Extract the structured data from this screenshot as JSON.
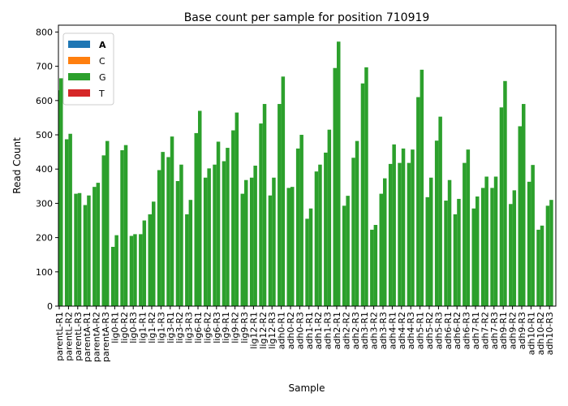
{
  "chart_data": {
    "type": "bar",
    "stacked": true,
    "title": "Base count per sample for position 710919",
    "xlabel": "Sample",
    "ylabel": "Read Count",
    "categories": [
      "parentL-R1",
      "parentL-R2",
      "parentL-R3",
      "parentA-R1",
      "parentA-R2",
      "parentA-R3",
      "lig0-R1",
      "lig0-R2",
      "lig0-R3",
      "lig1-R1",
      "lig1-R2",
      "lig1-R3",
      "lig3-R1",
      "lig3-R2",
      "lig3-R3",
      "lig6-R1",
      "lig6-R2",
      "lig6-R3",
      "lig9-R1",
      "lig9-R2",
      "lig9-R3",
      "lig12-R1",
      "lig12-R2",
      "lig12-R3",
      "adh0-R1",
      "adh0-R2",
      "adh0-R3",
      "adh1-R1",
      "adh1-R2",
      "adh1-R3",
      "adh2-R1",
      "adh2-R2",
      "adh2-R3",
      "adh3-R1",
      "adh3-R2",
      "adh3-R3",
      "adh4-R1",
      "adh4-R2",
      "adh4-R3",
      "adh5-R1",
      "adh5-R2",
      "adh5-R3",
      "adh6-R1",
      "adh6-R2",
      "adh6-R3",
      "adh7-R1",
      "adh7-R2",
      "adh7-R3",
      "adh9-R1",
      "adh9-R2",
      "adh9-R3",
      "adh10-R1",
      "adh10-R2",
      "adh10-R3"
    ],
    "series": [
      {
        "name": "A",
        "color": "#1f77b4",
        "values": [
          0,
          0,
          0,
          0,
          0,
          0,
          0,
          0,
          0,
          0,
          0,
          0,
          0,
          0,
          0,
          0,
          0,
          0,
          0,
          0,
          0,
          0,
          0,
          0,
          0,
          0,
          0,
          0,
          0,
          0,
          0,
          0,
          0,
          0,
          0,
          0,
          0,
          0,
          0,
          0,
          0,
          0,
          0,
          0,
          0,
          0,
          0,
          0,
          0,
          0,
          0,
          0,
          0,
          0
        ],
        "values2": [
          0,
          0,
          0,
          0,
          0,
          0,
          0,
          0,
          0,
          0,
          0,
          0,
          0,
          0,
          0,
          0,
          0,
          0,
          0,
          0,
          0,
          0,
          0,
          0,
          0,
          0,
          0,
          0,
          0,
          0,
          0,
          0,
          0,
          0,
          0,
          0,
          0,
          0,
          0,
          0,
          0,
          0,
          0,
          0,
          0,
          0,
          0,
          0,
          0,
          0,
          0,
          0,
          0,
          0
        ]
      },
      {
        "name": "C",
        "color": "#ff7f0e",
        "values": [
          0,
          0,
          0,
          0,
          0,
          0,
          0,
          0,
          0,
          0,
          0,
          0,
          0,
          0,
          0,
          0,
          0,
          0,
          0,
          0,
          0,
          0,
          0,
          0,
          0,
          0,
          0,
          0,
          0,
          0,
          0,
          0,
          0,
          0,
          0,
          0,
          0,
          0,
          0,
          0,
          0,
          0,
          0,
          0,
          0,
          0,
          0,
          0,
          0,
          0,
          0,
          0,
          0,
          0
        ],
        "values2": [
          0,
          0,
          0,
          0,
          0,
          0,
          0,
          0,
          0,
          0,
          0,
          0,
          0,
          0,
          0,
          0,
          0,
          0,
          0,
          0,
          0,
          0,
          0,
          0,
          0,
          0,
          0,
          0,
          0,
          0,
          0,
          0,
          0,
          0,
          0,
          0,
          0,
          0,
          0,
          0,
          0,
          0,
          0,
          0,
          0,
          0,
          0,
          0,
          0,
          0,
          0,
          0,
          0,
          0
        ]
      },
      {
        "name": "G",
        "color": "#2ca02c",
        "values": [
          630,
          487,
          328,
          295,
          348,
          440,
          173,
          455,
          205,
          210,
          268,
          397,
          435,
          365,
          268,
          505,
          375,
          413,
          423,
          513,
          328,
          375,
          533,
          323,
          590,
          345,
          460,
          255,
          393,
          448,
          695,
          293,
          433,
          650,
          223,
          328,
          415,
          418,
          418,
          610,
          318,
          483,
          308,
          268,
          418,
          285,
          345,
          345,
          580,
          298,
          525,
          363,
          223,
          293
        ],
        "values2": [
          665,
          503,
          330,
          323,
          360,
          482,
          207,
          470,
          210,
          250,
          305,
          450,
          495,
          413,
          310,
          570,
          402,
          480,
          462,
          565,
          368,
          410,
          590,
          375,
          670,
          348,
          500,
          285,
          413,
          515,
          772,
          322,
          482,
          697,
          237,
          373,
          472,
          460,
          457,
          690,
          375,
          553,
          368,
          313,
          457,
          320,
          378,
          378,
          657,
          338,
          590,
          412,
          235,
          310
        ]
      },
      {
        "name": "T",
        "color": "#d62728",
        "values": [
          0,
          0,
          0,
          0,
          0,
          0,
          0,
          0,
          0,
          0,
          0,
          0,
          0,
          0,
          0,
          0,
          0,
          0,
          0,
          0,
          0,
          0,
          0,
          0,
          0,
          0,
          0,
          0,
          0,
          0,
          0,
          0,
          0,
          0,
          0,
          0,
          0,
          0,
          0,
          0,
          0,
          0,
          0,
          0,
          0,
          0,
          0,
          0,
          0,
          0,
          0,
          0,
          0,
          0
        ],
        "values2": [
          0,
          0,
          0,
          0,
          0,
          0,
          0,
          0,
          0,
          0,
          0,
          0,
          0,
          0,
          0,
          0,
          0,
          0,
          0,
          0,
          0,
          0,
          0,
          0,
          0,
          0,
          0,
          0,
          0,
          0,
          0,
          0,
          0,
          0,
          0,
          0,
          0,
          0,
          0,
          0,
          0,
          0,
          0,
          0,
          0,
          0,
          0,
          0,
          0,
          0,
          0,
          0,
          0,
          0
        ]
      }
    ],
    "ylim": [
      0,
      820
    ],
    "yticks": [
      0,
      100,
      200,
      300,
      400,
      500,
      600,
      700,
      800
    ],
    "legend": "upper left",
    "grid": false
  }
}
